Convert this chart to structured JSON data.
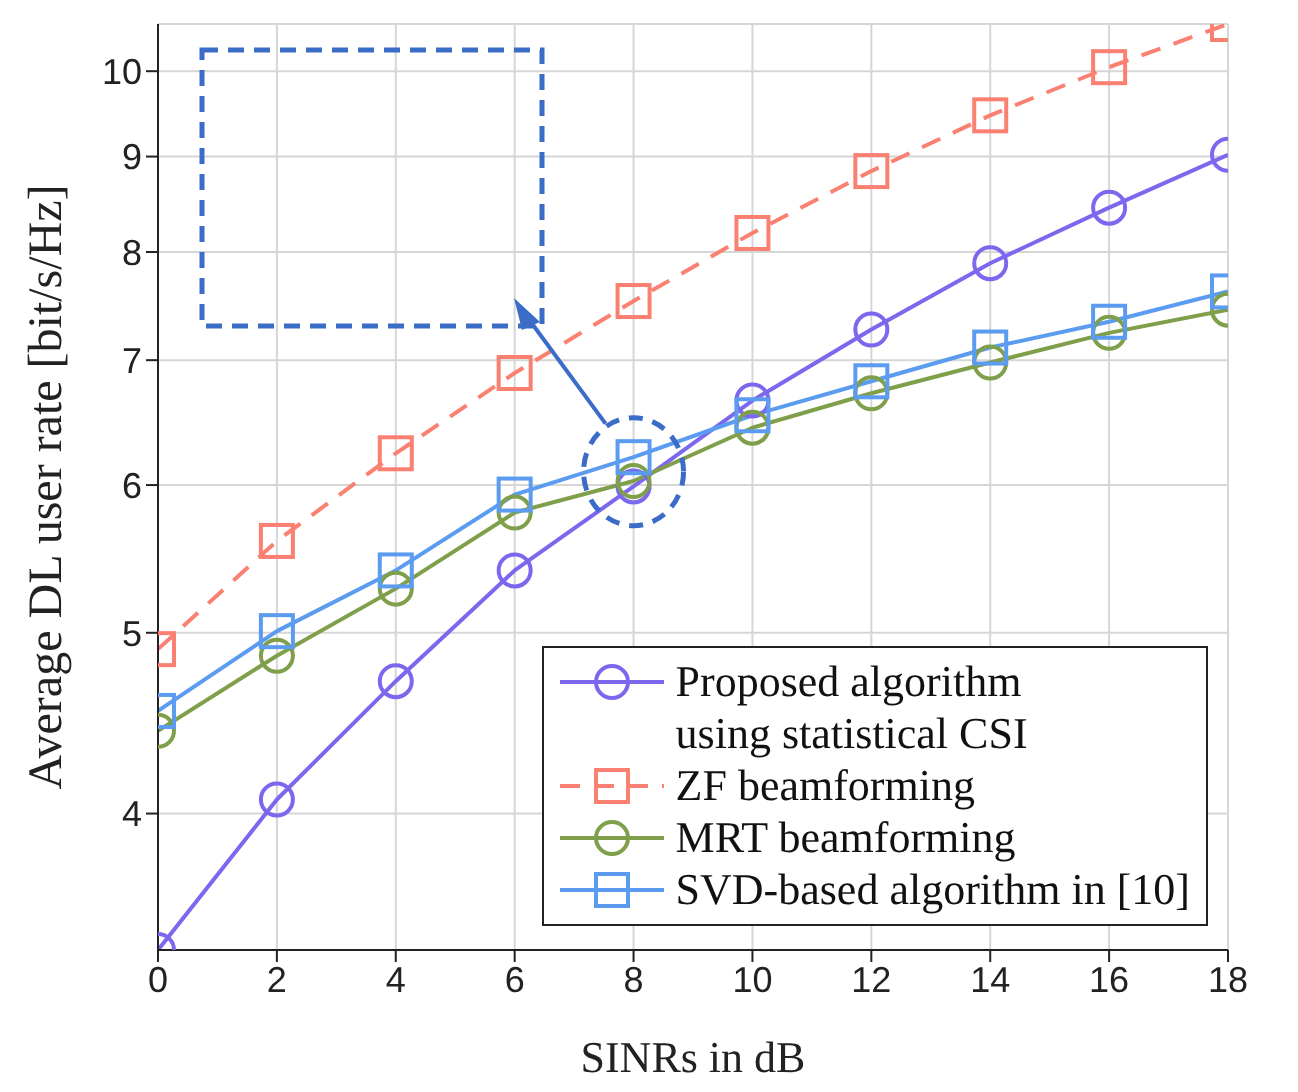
{
  "chart_data": {
    "type": "line",
    "xlabel": "SINRs in dB",
    "ylabel": "Average DL user rate [bit/s/Hz]",
    "x": [
      0,
      2,
      4,
      6,
      8,
      10,
      12,
      14,
      16,
      18
    ],
    "series": [
      {
        "name": "Proposed algorithm\nusing statistical CSI",
        "color": "#7b68ee",
        "marker": "circle",
        "line_style": "solid",
        "values": [
          3.38,
          4.07,
          4.71,
          5.4,
          5.99,
          6.66,
          7.27,
          7.89,
          8.45,
          9.02
        ]
      },
      {
        "name": "ZF beamforming",
        "color": "#fa8072",
        "marker": "square",
        "line_style": "dashed",
        "values": [
          4.9,
          5.6,
          6.24,
          6.89,
          7.53,
          8.19,
          8.84,
          9.47,
          10.05,
          10.6
        ]
      },
      {
        "name": "MRT beamforming",
        "color": "#7f9f4a",
        "marker": "circle",
        "line_style": "solid",
        "values": [
          4.43,
          4.86,
          5.28,
          5.8,
          6.03,
          6.44,
          6.72,
          6.98,
          7.24,
          7.45
        ]
      },
      {
        "name": "SVD-based algorithm in [10]",
        "color": "#5b9bf0",
        "marker": "square",
        "line_style": "solid",
        "values": [
          4.54,
          5.01,
          5.4,
          5.93,
          6.21,
          6.54,
          6.82,
          7.11,
          7.34,
          7.62
        ]
      }
    ],
    "xlim": [
      0,
      18
    ],
    "xticks": [
      0,
      2,
      4,
      6,
      8,
      10,
      12,
      14,
      16,
      18
    ],
    "ylim": [
      3.38,
      10.6
    ],
    "yticks": [
      4,
      5,
      6,
      7,
      8,
      9,
      10
    ],
    "log": "y",
    "grid": true,
    "legend": "bottom right"
  }
}
